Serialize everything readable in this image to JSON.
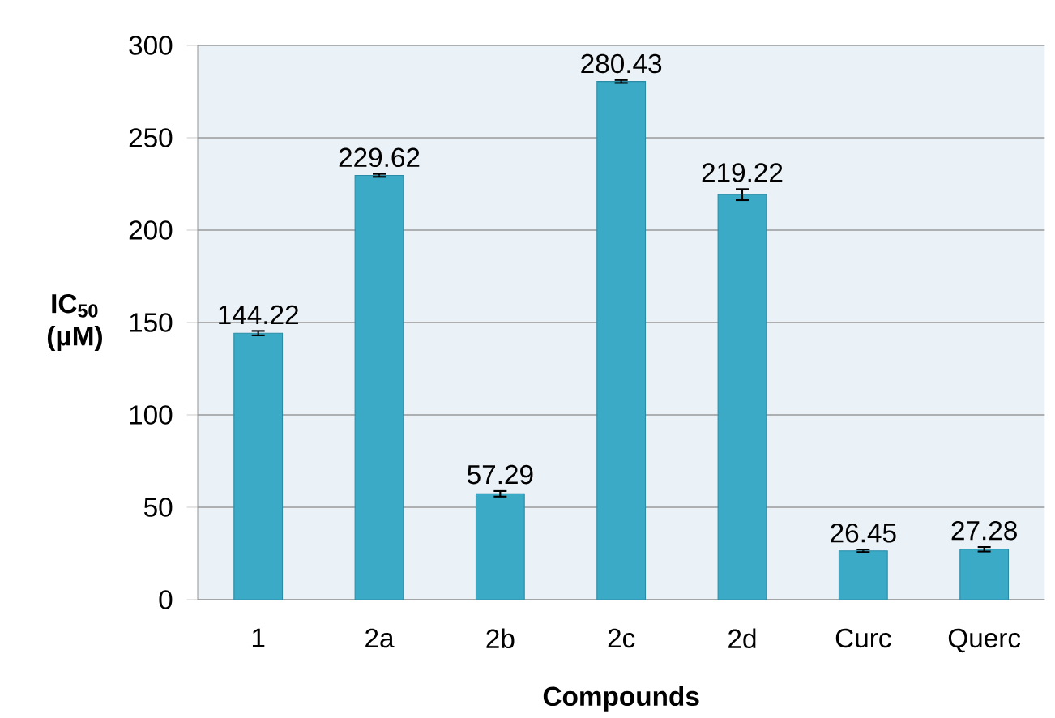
{
  "chart_data": {
    "type": "bar",
    "xlabel": "Compounds",
    "ylabel": "IC$_{50}$ (μM)",
    "categories": [
      "1",
      "2a",
      "2b",
      "2c",
      "2d",
      "Curc",
      "Querc"
    ],
    "values": [
      144.22,
      229.62,
      57.29,
      280.43,
      219.22,
      26.45,
      27.28
    ],
    "errors": [
      1.2,
      0.8,
      1.5,
      0.8,
      3,
      0.7,
      1.2
    ],
    "color": "#3aaac6",
    "ylim": [
      0,
      300
    ],
    "yticks": [
      0,
      50,
      100,
      150,
      200,
      250,
      300
    ],
    "grid": "y",
    "data_labels": true
  }
}
